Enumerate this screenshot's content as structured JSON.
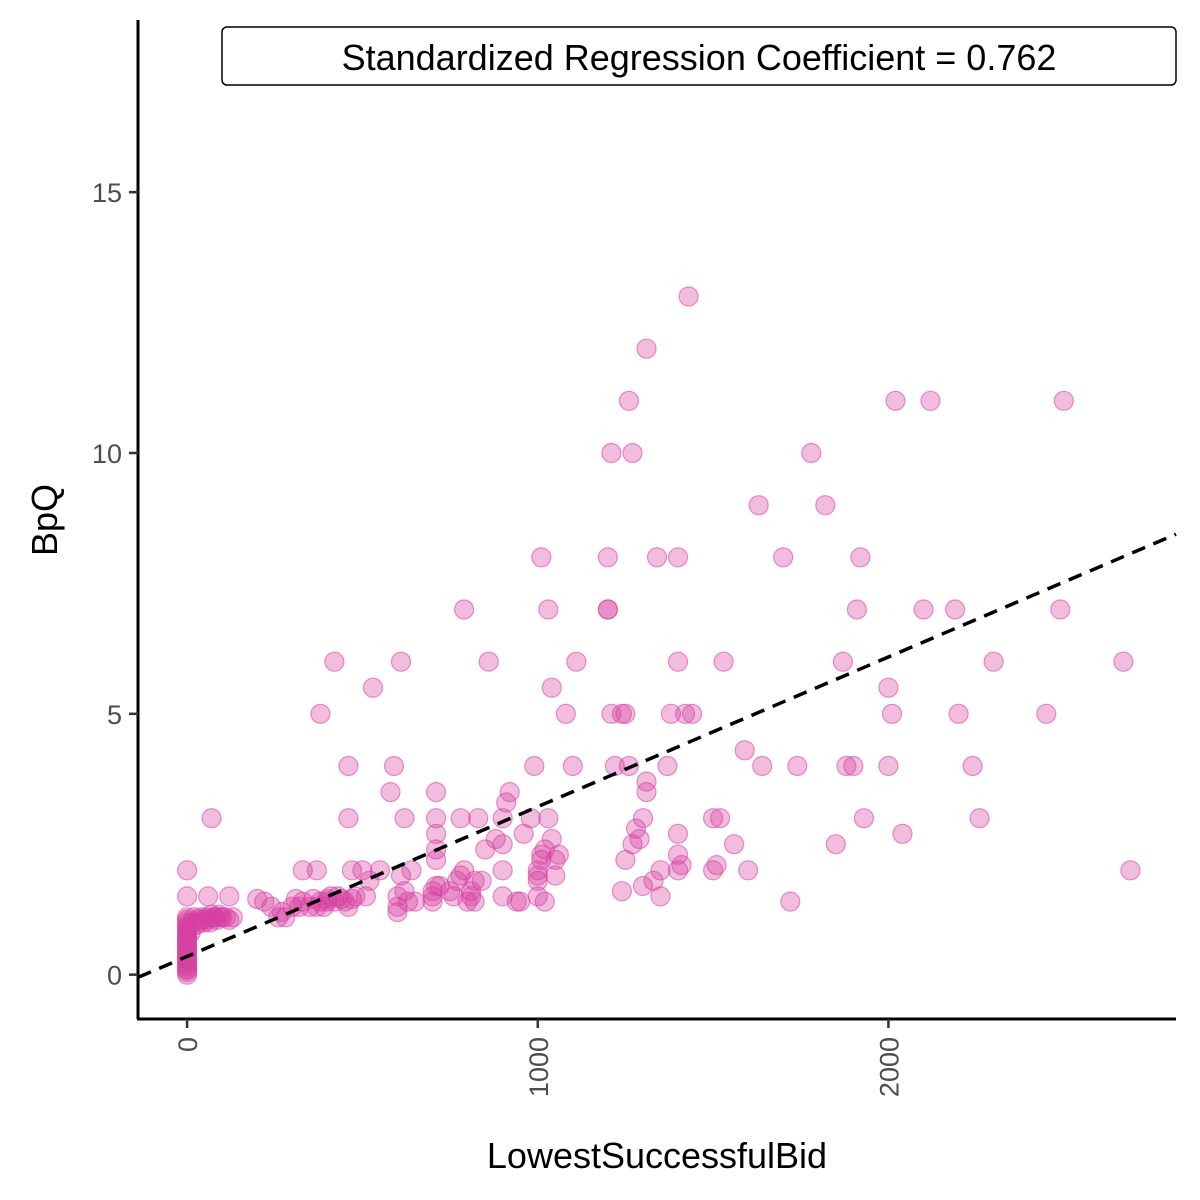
{
  "chart_data": {
    "type": "scatter",
    "title": "",
    "xlabel": "LowestSuccessfulBid",
    "ylabel": "BpQ",
    "xlim": [
      -140,
      2820
    ],
    "ylim": [
      -0.85,
      18.3
    ],
    "x_ticks": [
      0,
      1000,
      2000
    ],
    "x_tick_labels": [
      "0",
      "1000",
      "2000"
    ],
    "y_ticks": [
      0,
      5,
      10,
      15
    ],
    "y_tick_labels": [
      "0",
      "5",
      "10",
      "15"
    ],
    "grid": false,
    "legend": "none",
    "annotation": {
      "text": "Standardized Regression Coefficient = 0.762",
      "position": "top-right"
    },
    "regression_line": {
      "style": "dashed",
      "color": "#000000",
      "intercept": 0.35,
      "slope": 0.00287
    },
    "point_color": "#d63fa0",
    "point_opacity": 0.35,
    "points": [
      [
        0,
        0
      ],
      [
        0,
        0.05
      ],
      [
        0,
        0.1
      ],
      [
        0,
        0.15
      ],
      [
        0,
        0.2
      ],
      [
        0,
        0.25
      ],
      [
        0,
        0.3
      ],
      [
        0,
        0.35
      ],
      [
        0,
        0.4
      ],
      [
        0,
        0.45
      ],
      [
        0,
        0.5
      ],
      [
        0,
        0.55
      ],
      [
        0,
        0.6
      ],
      [
        0,
        0.65
      ],
      [
        0,
        0.7
      ],
      [
        0,
        0.75
      ],
      [
        0,
        0.8
      ],
      [
        0,
        0.85
      ],
      [
        0,
        0.9
      ],
      [
        0,
        0.95
      ],
      [
        0,
        1.0
      ],
      [
        0,
        1.05
      ],
      [
        0,
        1.1
      ],
      [
        0,
        1.5
      ],
      [
        0,
        2.0
      ],
      [
        0,
        0.1
      ],
      [
        0,
        0.3
      ],
      [
        0,
        0.5
      ],
      [
        0,
        0.7
      ],
      [
        0,
        0.9
      ],
      [
        10,
        0.8
      ],
      [
        15,
        1.0
      ],
      [
        20,
        1.1
      ],
      [
        25,
        0.95
      ],
      [
        30,
        1.05
      ],
      [
        35,
        1.0
      ],
      [
        40,
        1.1
      ],
      [
        45,
        1.05
      ],
      [
        50,
        1.0
      ],
      [
        55,
        1.1
      ],
      [
        60,
        1.05
      ],
      [
        65,
        1.0
      ],
      [
        70,
        1.15
      ],
      [
        75,
        1.1
      ],
      [
        80,
        1.1
      ],
      [
        85,
        1.05
      ],
      [
        90,
        1.15
      ],
      [
        95,
        1.1
      ],
      [
        100,
        1.1
      ],
      [
        110,
        1.1
      ],
      [
        120,
        1.05
      ],
      [
        130,
        1.1
      ],
      [
        60,
        1.5
      ],
      [
        70,
        3.0
      ],
      [
        120,
        1.5
      ],
      [
        200,
        1.45
      ],
      [
        220,
        1.4
      ],
      [
        240,
        1.3
      ],
      [
        260,
        1.1
      ],
      [
        270,
        1.2
      ],
      [
        280,
        1.1
      ],
      [
        300,
        1.3
      ],
      [
        310,
        1.45
      ],
      [
        320,
        1.3
      ],
      [
        330,
        1.4
      ],
      [
        350,
        1.3
      ],
      [
        360,
        1.45
      ],
      [
        370,
        1.3
      ],
      [
        380,
        1.4
      ],
      [
        390,
        1.3
      ],
      [
        400,
        1.45
      ],
      [
        410,
        1.5
      ],
      [
        420,
        1.4
      ],
      [
        430,
        1.5
      ],
      [
        440,
        1.45
      ],
      [
        450,
        1.4
      ],
      [
        460,
        1.3
      ],
      [
        470,
        1.45
      ],
      [
        480,
        1.5
      ],
      [
        330,
        2.0
      ],
      [
        370,
        2.0
      ],
      [
        380,
        5.0
      ],
      [
        400,
        1.4
      ],
      [
        420,
        6.0
      ],
      [
        460,
        4.0
      ],
      [
        460,
        3.0
      ],
      [
        470,
        2.0
      ],
      [
        500,
        2.0
      ],
      [
        510,
        1.5
      ],
      [
        520,
        1.8
      ],
      [
        530,
        5.5
      ],
      [
        550,
        2.0
      ],
      [
        580,
        3.5
      ],
      [
        590,
        4.0
      ],
      [
        600,
        1.5
      ],
      [
        600,
        1.3
      ],
      [
        600,
        1.2
      ],
      [
        610,
        6.0
      ],
      [
        610,
        1.9
      ],
      [
        620,
        1.6
      ],
      [
        620,
        3.0
      ],
      [
        630,
        1.4
      ],
      [
        640,
        2.0
      ],
      [
        650,
        1.4
      ],
      [
        700,
        1.4
      ],
      [
        700,
        1.5
      ],
      [
        700,
        1.6
      ],
      [
        710,
        1.7
      ],
      [
        710,
        2.2
      ],
      [
        710,
        2.4
      ],
      [
        710,
        2.7
      ],
      [
        710,
        3.0
      ],
      [
        710,
        3.5
      ],
      [
        720,
        1.7
      ],
      [
        750,
        1.6
      ],
      [
        760,
        1.5
      ],
      [
        770,
        1.8
      ],
      [
        780,
        1.9
      ],
      [
        780,
        3.0
      ],
      [
        790,
        2.0
      ],
      [
        790,
        7.0
      ],
      [
        800,
        1.4
      ],
      [
        810,
        1.5
      ],
      [
        810,
        1.6
      ],
      [
        820,
        1.4
      ],
      [
        820,
        1.8
      ],
      [
        830,
        3.0
      ],
      [
        840,
        1.8
      ],
      [
        850,
        2.4
      ],
      [
        860,
        6.0
      ],
      [
        880,
        2.6
      ],
      [
        900,
        1.5
      ],
      [
        900,
        2.0
      ],
      [
        900,
        2.5
      ],
      [
        900,
        3.0
      ],
      [
        910,
        3.3
      ],
      [
        920,
        3.5
      ],
      [
        940,
        1.4
      ],
      [
        950,
        1.4
      ],
      [
        960,
        2.7
      ],
      [
        980,
        3.0
      ],
      [
        990,
        4.0
      ],
      [
        1000,
        1.5
      ],
      [
        1000,
        1.8
      ],
      [
        1000,
        1.9
      ],
      [
        1000,
        2.0
      ],
      [
        1010,
        2.2
      ],
      [
        1010,
        2.3
      ],
      [
        1010,
        8.0
      ],
      [
        1020,
        1.4
      ],
      [
        1020,
        2.4
      ],
      [
        1030,
        3.0
      ],
      [
        1030,
        7.0
      ],
      [
        1040,
        2.6
      ],
      [
        1040,
        5.5
      ],
      [
        1050,
        1.9
      ],
      [
        1050,
        2.2
      ],
      [
        1060,
        2.3
      ],
      [
        1080,
        5.0
      ],
      [
        1100,
        4.0
      ],
      [
        1110,
        6.0
      ],
      [
        1200,
        7.0
      ],
      [
        1200,
        7.0
      ],
      [
        1200,
        8.0
      ],
      [
        1210,
        10.0
      ],
      [
        1210,
        5.0
      ],
      [
        1220,
        4.0
      ],
      [
        1240,
        5.0
      ],
      [
        1240,
        1.6
      ],
      [
        1250,
        5.0
      ],
      [
        1250,
        2.2
      ],
      [
        1260,
        4.0
      ],
      [
        1260,
        11.0
      ],
      [
        1270,
        10.0
      ],
      [
        1270,
        2.5
      ],
      [
        1280,
        2.8
      ],
      [
        1290,
        2.6
      ],
      [
        1300,
        3.0
      ],
      [
        1300,
        1.7
      ],
      [
        1310,
        3.7
      ],
      [
        1310,
        3.5
      ],
      [
        1310,
        12.0
      ],
      [
        1330,
        1.8
      ],
      [
        1340,
        8.0
      ],
      [
        1350,
        2.0
      ],
      [
        1350,
        1.5
      ],
      [
        1370,
        4.0
      ],
      [
        1380,
        5.0
      ],
      [
        1400,
        6.0
      ],
      [
        1400,
        8.0
      ],
      [
        1400,
        2.3
      ],
      [
        1400,
        2.7
      ],
      [
        1400,
        2.0
      ],
      [
        1410,
        2.1
      ],
      [
        1420,
        5.0
      ],
      [
        1430,
        13.0
      ],
      [
        1440,
        5.0
      ],
      [
        1500,
        3.0
      ],
      [
        1500,
        2.0
      ],
      [
        1510,
        2.1
      ],
      [
        1520,
        3.0
      ],
      [
        1530,
        6.0
      ],
      [
        1560,
        2.5
      ],
      [
        1590,
        4.3
      ],
      [
        1600,
        2.0
      ],
      [
        1630,
        9.0
      ],
      [
        1640,
        4.0
      ],
      [
        1700,
        8.0
      ],
      [
        1720,
        1.4
      ],
      [
        1740,
        4.0
      ],
      [
        1780,
        10.0
      ],
      [
        1820,
        9.0
      ],
      [
        1850,
        2.5
      ],
      [
        1870,
        6.0
      ],
      [
        1880,
        4.0
      ],
      [
        1900,
        4.0
      ],
      [
        1910,
        7.0
      ],
      [
        1920,
        8.0
      ],
      [
        1930,
        3.0
      ],
      [
        2000,
        4.0
      ],
      [
        2000,
        5.5
      ],
      [
        2010,
        5.0
      ],
      [
        2020,
        11.0
      ],
      [
        2040,
        2.7
      ],
      [
        2100,
        7.0
      ],
      [
        2120,
        11.0
      ],
      [
        2190,
        7.0
      ],
      [
        2200,
        5.0
      ],
      [
        2240,
        4.0
      ],
      [
        2260,
        3.0
      ],
      [
        2300,
        6.0
      ],
      [
        2450,
        5.0
      ],
      [
        2490,
        7.0
      ],
      [
        2500,
        11.0
      ],
      [
        2670,
        6.0
      ],
      [
        2690,
        2.0
      ]
    ]
  }
}
